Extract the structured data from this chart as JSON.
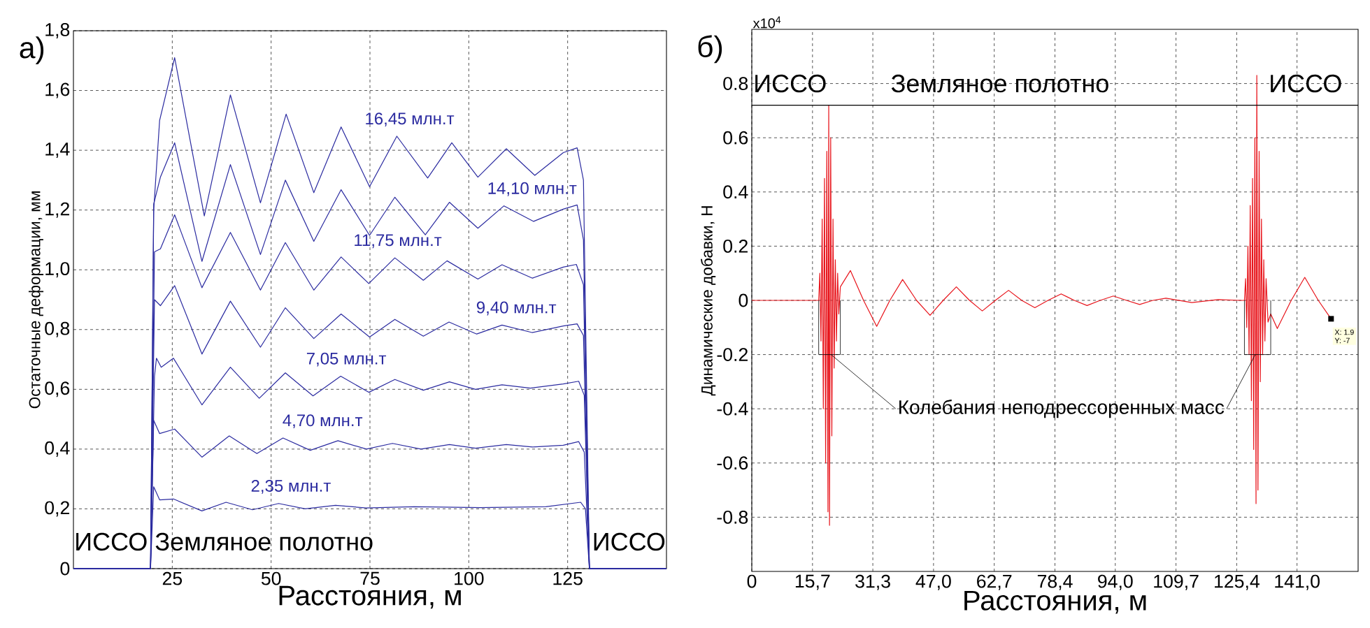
{
  "chart_data": [
    {
      "type": "line",
      "title": "а)",
      "xlabel": "Расстояния, м",
      "ylabel": "Остаточные деформации, мм",
      "xlim": [
        0,
        150
      ],
      "xticks": [
        25,
        50,
        75,
        100,
        125
      ],
      "ylim": [
        0,
        1.8
      ],
      "yticks": [
        0,
        {
          "value": 0.2,
          "label": "0,2"
        },
        {
          "value": 0.4,
          "label": "0,4"
        },
        {
          "value": 0.6,
          "label": "0,6"
        },
        {
          "value": 0.8,
          "label": "0,8"
        },
        {
          "value": 1.0,
          "label": "1,0"
        },
        {
          "value": 1.2,
          "label": "1,2"
        },
        {
          "value": 1.4,
          "label": "1,4"
        },
        {
          "value": 1.6,
          "label": "1,6"
        },
        {
          "value": 1.8,
          "label": "1,8"
        }
      ],
      "grid": true,
      "annotations": [
        "ИССО",
        "Земляное полотно",
        "ИССО"
      ],
      "series": [
        {
          "name": "16,45 млн.т",
          "color": "#2b2ba0",
          "x": [
            0,
            19.5,
            20.3,
            21.8,
            25.6,
            33.1,
            39.7,
            47.3,
            53.8,
            60.8,
            67.7,
            74.9,
            81.8,
            89.6,
            95.7,
            102.3,
            109.5,
            116.7,
            123.9,
            127.4,
            129.0,
            130.5,
            150
          ],
          "values": [
            0,
            0,
            1.2,
            1.5,
            1.71,
            1.18,
            1.585,
            1.224,
            1.521,
            1.258,
            1.478,
            1.278,
            1.447,
            1.307,
            1.425,
            1.31,
            1.405,
            1.316,
            1.392,
            1.408,
            1.3,
            0,
            0
          ]
        },
        {
          "name": "14,10 млн.т",
          "color": "#2b2ba0",
          "x": [
            0,
            19.5,
            20.3,
            22.0,
            25.6,
            32.5,
            39.7,
            47.3,
            53.6,
            60.8,
            67.7,
            74.9,
            81.3,
            89.0,
            95.1,
            102.3,
            108.9,
            116.4,
            123.9,
            127.4,
            129.0,
            130.5,
            150
          ],
          "values": [
            0,
            0,
            1.22,
            1.31,
            1.425,
            1.028,
            1.352,
            1.051,
            1.3,
            1.095,
            1.268,
            1.115,
            1.243,
            1.117,
            1.226,
            1.139,
            1.214,
            1.162,
            1.203,
            1.217,
            1.1,
            0,
            0
          ]
        },
        {
          "name": "11,75 млн.т",
          "color": "#2b2ba0",
          "x": [
            0,
            19.5,
            20.5,
            22.0,
            25.6,
            32.5,
            39.7,
            47.3,
            53.6,
            60.8,
            67.7,
            74.7,
            81.3,
            88.5,
            94.5,
            102.3,
            108.4,
            116.1,
            123.9,
            127.2,
            129.0,
            130.5,
            150
          ],
          "values": [
            0,
            0,
            1.06,
            1.07,
            1.184,
            0.94,
            1.125,
            0.932,
            1.091,
            0.932,
            1.043,
            0.954,
            1.04,
            0.965,
            1.03,
            0.969,
            1.017,
            0.972,
            1.009,
            1.018,
            0.95,
            0,
            0
          ]
        },
        {
          "name": "9,40 млн.т",
          "color": "#2b2ba0",
          "x": [
            0,
            19.5,
            20.5,
            22.0,
            25.6,
            32.5,
            39.7,
            47.3,
            53.6,
            60.8,
            67.7,
            74.9,
            81.3,
            88.5,
            95.0,
            102.0,
            108.4,
            116.0,
            123.9,
            127.4,
            129.0,
            130.5,
            150
          ],
          "values": [
            0,
            0,
            0.9,
            0.88,
            0.947,
            0.718,
            0.895,
            0.741,
            0.873,
            0.77,
            0.852,
            0.775,
            0.834,
            0.778,
            0.825,
            0.785,
            0.815,
            0.79,
            0.812,
            0.819,
            0.78,
            0,
            0
          ]
        },
        {
          "name": "7,05 млн.т",
          "color": "#2b2ba0",
          "x": [
            0,
            19.5,
            20.5,
            21.0,
            22.2,
            25.3,
            32.5,
            39.7,
            47.0,
            53.6,
            60.6,
            67.6,
            74.7,
            81.3,
            88.5,
            95.1,
            101.7,
            108.4,
            115.6,
            123.9,
            127.8,
            129.2,
            130.5,
            150
          ],
          "values": [
            0,
            0,
            0.644,
            0.704,
            0.674,
            0.704,
            0.548,
            0.674,
            0.57,
            0.655,
            0.578,
            0.644,
            0.59,
            0.633,
            0.597,
            0.625,
            0.6,
            0.615,
            0.604,
            0.618,
            0.627,
            0.58,
            0,
            0
          ]
        },
        {
          "name": "4,70 млн.т",
          "color": "#2b2ba0",
          "x": [
            0,
            19.5,
            20.3,
            21.8,
            25.6,
            32.5,
            39.4,
            46.4,
            53.0,
            59.9,
            66.9,
            74.1,
            80.7,
            87.9,
            95.1,
            101.7,
            109.5,
            116.1,
            123.9,
            127.8,
            129.2,
            130.5,
            150
          ],
          "values": [
            0,
            0,
            0.496,
            0.452,
            0.467,
            0.373,
            0.444,
            0.385,
            0.437,
            0.396,
            0.428,
            0.4,
            0.419,
            0.4,
            0.415,
            0.403,
            0.415,
            0.407,
            0.413,
            0.425,
            0.39,
            0,
            0
          ]
        },
        {
          "name": "2,35 млн.т",
          "color": "#2b2ba0",
          "x": [
            0,
            19.5,
            20.3,
            21.8,
            25.3,
            32.5,
            38.6,
            45.3,
            51.9,
            58.6,
            66.3,
            74.0,
            86.2,
            102.9,
            119.5,
            128.3,
            129.5,
            130.5,
            150
          ],
          "values": [
            0,
            0,
            0.274,
            0.23,
            0.233,
            0.193,
            0.222,
            0.197,
            0.218,
            0.2,
            0.212,
            0.203,
            0.207,
            0.204,
            0.207,
            0.222,
            0.2,
            0,
            0
          ]
        }
      ]
    },
    {
      "type": "line",
      "title": "б)",
      "xlabel": "Расстояния, м",
      "ylabel": "Динамические добавки, Н",
      "xlim": [
        0,
        156.8
      ],
      "xticks": [
        0,
        {
          "value": 15.7,
          "label": "15,7"
        },
        {
          "value": 31.3,
          "label": "31,3"
        },
        {
          "value": 47.0,
          "label": "47,0"
        },
        {
          "value": 62.7,
          "label": "62,7"
        },
        {
          "value": 78.4,
          "label": "78,4"
        },
        {
          "value": 94.0,
          "label": "94,0"
        },
        {
          "value": 109.7,
          "label": "109,7"
        },
        {
          "value": 125.4,
          "label": "125,4"
        },
        {
          "value": 141.0,
          "label": "141,0"
        }
      ],
      "ylim": [
        -1,
        1
      ],
      "yticks": [
        -0.8,
        -0.6,
        -0.4,
        -0.2,
        0,
        0.2,
        0.4,
        0.6,
        0.8
      ],
      "grid": true,
      "ref_lines": [
        {
          "axis": "y",
          "value": 0.72,
          "color": "#000000"
        }
      ],
      "annotations": [
        "x10$^{4}$",
        "ИССО",
        "Земляное полотно",
        "ИССО",
        {
          "text": "Колебания неподрессоренных масс",
          "x": 20.5,
          "y": -0.2
        },
        "X: 1.9",
        "Y: -7"
      ],
      "series": [
        {
          "color": "#e8141b",
          "x": [
            0,
            17.3,
            17.6,
            17.9,
            18.2,
            18.5,
            18.8,
            19.1,
            19.4,
            19.7,
            19.9,
            20.1,
            20.4,
            20.7,
            21.0,
            21.3,
            21.6,
            21.9,
            22.2,
            22.5,
            22.9,
            25.5,
            28.9,
            32.3,
            35.7,
            39.0,
            42.6,
            46.1,
            49.5,
            52.9,
            56.3,
            59.6,
            63.0,
            66.4,
            69.8,
            73.2,
            76.6,
            80.0,
            83.4,
            86.7,
            90.1,
            93.5,
            96.9,
            100.3,
            103.7,
            107.1,
            113.8,
            120.6,
            126.3,
            127.4,
            127.7,
            128.0,
            128.3,
            128.6,
            128.9,
            129.2,
            129.5,
            129.8,
            130.1,
            130.4,
            130.6,
            130.9,
            131.2,
            131.5,
            131.8,
            132.1,
            132.4,
            132.7,
            133.0,
            133.5,
            134.2,
            135.9,
            139.5,
            143.0,
            146.5,
            149.8
          ],
          "values": [
            0,
            0,
            0.1,
            -0.15,
            0.3,
            -0.4,
            0.45,
            -0.6,
            0.55,
            -0.78,
            0.72,
            -0.83,
            0.6,
            -0.5,
            0.3,
            -0.25,
            0.15,
            -0.15,
            0.1,
            -0.05,
            0.05,
            0.11,
            0,
            -0.096,
            0,
            0.077,
            0,
            -0.055,
            0,
            0.05,
            0,
            -0.039,
            0,
            0.037,
            0,
            -0.027,
            0,
            0.024,
            0,
            -0.019,
            0,
            0.016,
            0,
            -0.015,
            0,
            0.008,
            -0.008,
            0.003,
            0,
            0,
            0.08,
            -0.1,
            0.2,
            -0.2,
            0.35,
            -0.37,
            0.45,
            -0.55,
            0.6,
            -0.75,
            0.83,
            -0.7,
            0.55,
            -0.3,
            0.3,
            -0.2,
            0.15,
            -0.15,
            0.08,
            -0.08,
            -0.05,
            -0.104,
            0,
            0.085,
            0,
            -0.068
          ]
        }
      ]
    }
  ]
}
